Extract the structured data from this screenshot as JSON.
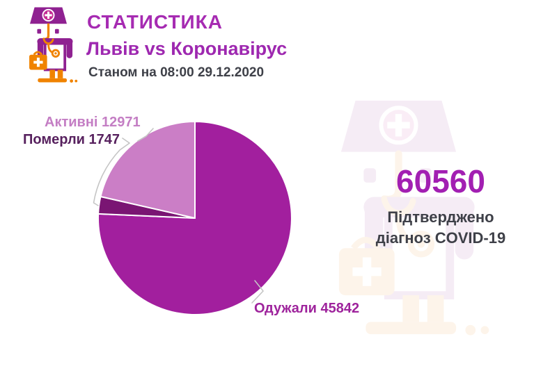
{
  "header": {
    "title": "СТАТИСТИКА",
    "subtitle": "Львів vs Коронавірус",
    "as_of": "Станом на 08:00 29.12.2020"
  },
  "summary": {
    "total": "60560",
    "caption_line1": "Підтверджено",
    "caption_line2": "діагноз COVID-19"
  },
  "icons": {
    "header_icon": "doctor-icon",
    "watermark_icon": "doctor-icon"
  },
  "colors": {
    "title_purple": "#A62BB2",
    "total_purple": "#A21FB2",
    "dark_text": "#3E4048",
    "icon_purple": "#8F2191",
    "icon_orange": "#F08300",
    "leader_line": "#C5C5C5"
  },
  "chart_data": {
    "type": "pie",
    "title": "",
    "total": 60560,
    "start_angle_deg": 0,
    "direction": "clockwise",
    "legend_position": "callout-labels",
    "grid": false,
    "slices": [
      {
        "name": "Одужали",
        "value": 45842,
        "color": "#A21F9E",
        "callout": "Одужали 45842"
      },
      {
        "name": "Померли",
        "value": 1747,
        "color": "#7A1573",
        "callout": "Померли 1747"
      },
      {
        "name": "Активні",
        "value": 12971,
        "color": "#CB7EC6",
        "callout": "Активні 12971"
      }
    ]
  }
}
